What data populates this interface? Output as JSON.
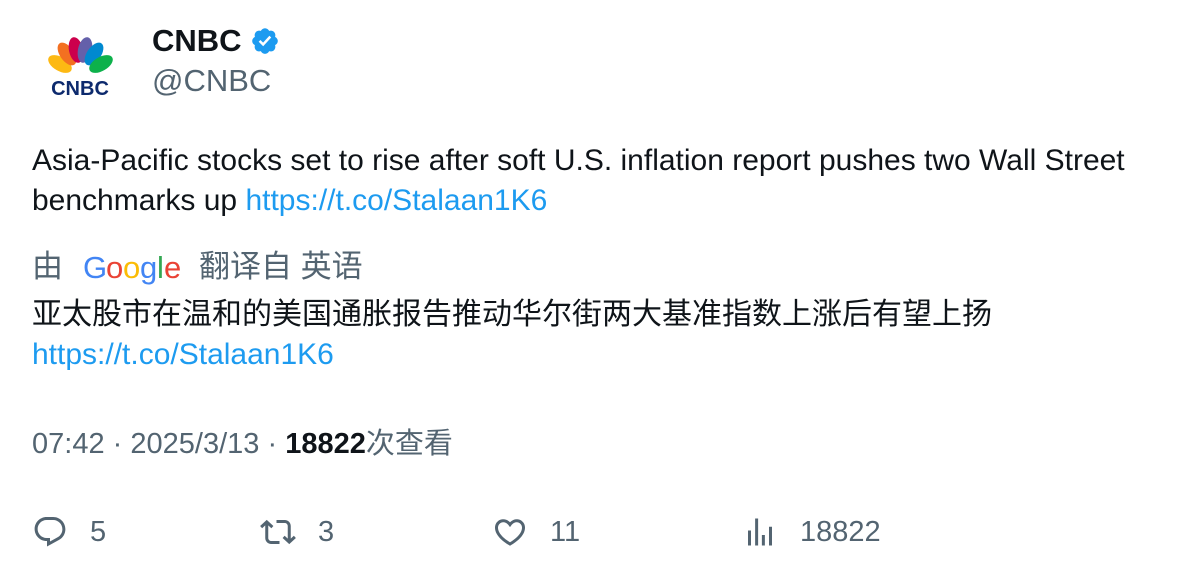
{
  "author": {
    "display_name": "CNBC",
    "handle": "@CNBC",
    "verified_icon": "verified-badge-icon",
    "avatar_logo_text": "CNBC",
    "colors": {
      "verified": "#1d9bf0"
    }
  },
  "tweet": {
    "text": "Asia-Pacific stocks set to rise after soft U.S. inflation report pushes two Wall Street benchmarks up ",
    "link": "https://t.co/Stalaan1K6"
  },
  "translation": {
    "prefix": "由",
    "provider_logo": "Google",
    "suffix": "翻译自 英语",
    "text": "亚太股市在温和的美国通胀报告推动华尔街两大基准指数上涨后有望上扬",
    "link": "https://t.co/Stalaan1K6"
  },
  "meta": {
    "time": "07:42",
    "separator": "·",
    "date": "2025/3/13",
    "views_count": "18822",
    "views_label": "次查看"
  },
  "actions": {
    "replies": "5",
    "retweets": "3",
    "likes": "11",
    "views": "18822"
  },
  "colors": {
    "text": "#0f1419",
    "secondary": "#536471",
    "link": "#1d9bf0"
  }
}
